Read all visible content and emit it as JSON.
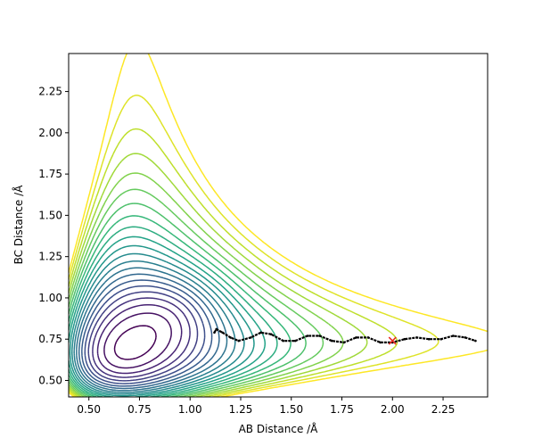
{
  "chart_data": {
    "type": "contour",
    "title": "",
    "xlabel": "AB Distance /Å",
    "ylabel": "BC Distance /Å",
    "xlim": [
      0.4,
      2.47
    ],
    "ylim": [
      0.4,
      2.48
    ],
    "xticks": [
      0.5,
      0.75,
      1.0,
      1.25,
      1.5,
      1.75,
      2.0,
      2.25
    ],
    "xtick_labels": [
      "0.50",
      "0.75",
      "1.00",
      "1.25",
      "1.50",
      "1.75",
      "2.00",
      "2.25"
    ],
    "yticks": [
      0.5,
      0.75,
      1.0,
      1.25,
      1.5,
      1.75,
      2.0,
      2.25
    ],
    "ytick_labels": [
      "0.50",
      "0.75",
      "1.00",
      "1.25",
      "1.50",
      "1.75",
      "2.00",
      "2.25"
    ],
    "grid": false,
    "colormap": "viridis",
    "contour_level_count": 22,
    "trajectory": {
      "color": "#000000",
      "points": [
        [
          1.12,
          0.79
        ],
        [
          1.13,
          0.81
        ],
        [
          1.16,
          0.79
        ],
        [
          1.2,
          0.76
        ],
        [
          1.24,
          0.74
        ],
        [
          1.3,
          0.76
        ],
        [
          1.35,
          0.79
        ],
        [
          1.4,
          0.78
        ],
        [
          1.46,
          0.74
        ],
        [
          1.52,
          0.74
        ],
        [
          1.58,
          0.77
        ],
        [
          1.64,
          0.77
        ],
        [
          1.7,
          0.74
        ],
        [
          1.76,
          0.73
        ],
        [
          1.82,
          0.76
        ],
        [
          1.88,
          0.76
        ],
        [
          1.94,
          0.73
        ],
        [
          2.0,
          0.73
        ],
        [
          2.06,
          0.75
        ],
        [
          2.12,
          0.76
        ],
        [
          2.18,
          0.75
        ],
        [
          2.24,
          0.75
        ],
        [
          2.3,
          0.77
        ],
        [
          2.36,
          0.76
        ],
        [
          2.41,
          0.74
        ]
      ]
    },
    "start_marker": {
      "x": 2.0,
      "y": 0.74,
      "symbol": "x",
      "color": "#e8271f"
    }
  }
}
